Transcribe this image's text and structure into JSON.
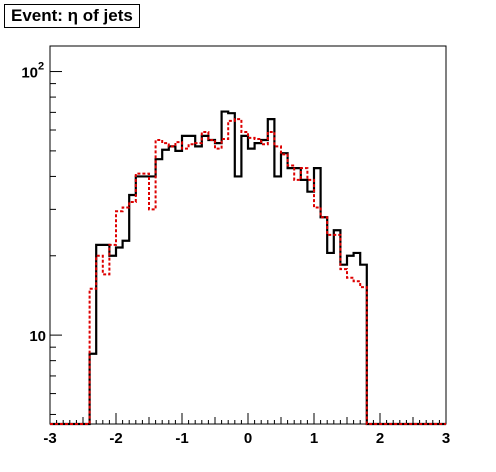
{
  "chart_data": {
    "type": "histogram",
    "title": "Event: η of jets",
    "xlabel": "",
    "ylabel": "",
    "xlim": [
      -3,
      3
    ],
    "ylim": [
      4.6,
      125
    ],
    "yscale": "log",
    "grid": false,
    "legend": "none",
    "x_ticks": [
      "-3",
      "-2",
      "-1",
      "0",
      "1",
      "2",
      "3"
    ],
    "y_ticks": [
      {
        "value": 10,
        "base": "10",
        "exp": ""
      },
      {
        "value": 100,
        "base": "10",
        "exp": "2"
      }
    ],
    "bin_edges_start": -3,
    "bin_width": 0.1,
    "series": [
      {
        "style": "solid",
        "color": "#000000",
        "values": [
          0,
          0,
          0,
          0,
          0,
          0,
          8.5,
          22,
          22,
          20,
          21.5,
          22.8,
          34,
          40,
          40,
          40,
          46.5,
          50.5,
          52,
          50,
          57,
          57,
          52,
          57,
          55,
          53.5,
          70.5,
          69.5,
          40,
          57,
          51,
          53.5,
          55,
          66,
          40,
          49,
          43,
          43,
          38.8,
          35,
          43,
          28,
          20.5,
          25,
          18.5,
          20,
          20.5,
          18.5,
          0,
          0,
          0,
          0,
          0,
          0,
          0,
          0,
          0,
          0,
          0,
          0
        ]
      },
      {
        "style": "dashed",
        "color": "#dd0000",
        "values": [
          0,
          0,
          0,
          0,
          0,
          0,
          15,
          20,
          17,
          22,
          29.5,
          30.5,
          32,
          41,
          41,
          30,
          55,
          53.5,
          52,
          54,
          51,
          53,
          53.5,
          59,
          55,
          51,
          55.5,
          65,
          66,
          59,
          56,
          55.5,
          53,
          59,
          52,
          48.5,
          44,
          38.8,
          43,
          38.8,
          30.5,
          28,
          24,
          24,
          17.8,
          16.5,
          16,
          15.2,
          0,
          0,
          0,
          0,
          0,
          0,
          0,
          0,
          0,
          0,
          0,
          0
        ]
      }
    ]
  }
}
